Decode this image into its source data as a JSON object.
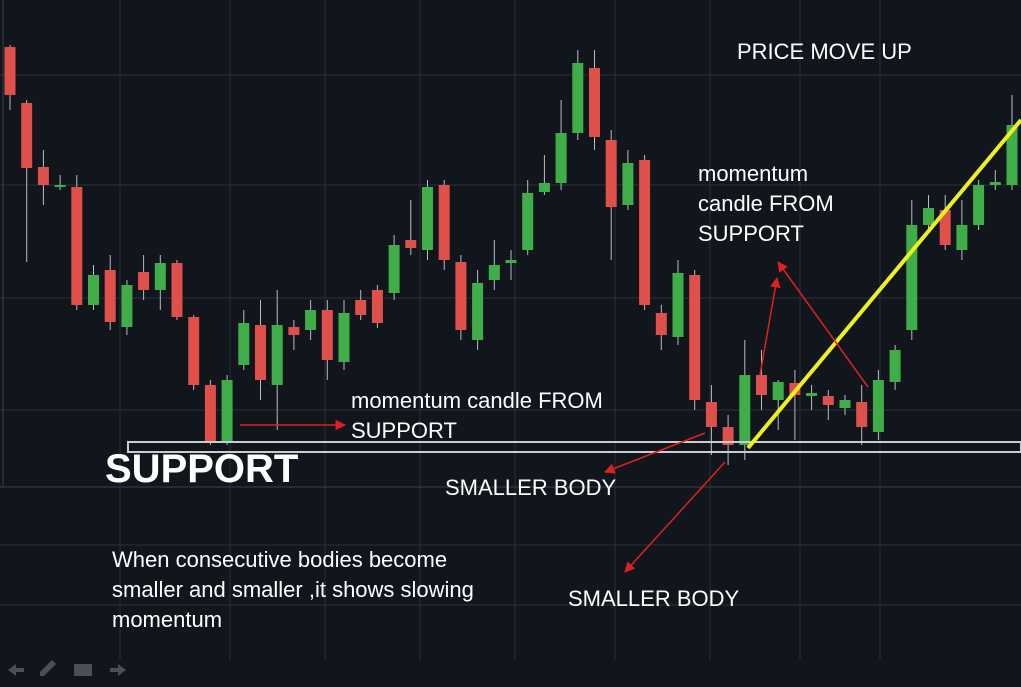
{
  "chart_data": {
    "type": "candlestick",
    "open": [
      443,
      387,
      323,
      303,
      303,
      185,
      220,
      163,
      218,
      200,
      227,
      173,
      105,
      48,
      125,
      165,
      105,
      163,
      160,
      180,
      128,
      190,
      200,
      197,
      250,
      240,
      305,
      228,
      150,
      210,
      227,
      240,
      298,
      307,
      357,
      422,
      350,
      285,
      330,
      177,
      153,
      215,
      88,
      63,
      45,
      115,
      90,
      107,
      94,
      94,
      82,
      88,
      58,
      108,
      160,
      265,
      280,
      240,
      265,
      305,
      305
    ],
    "high": [
      445,
      390,
      340,
      315,
      315,
      225,
      235,
      210,
      235,
      235,
      230,
      175,
      110,
      115,
      180,
      190,
      200,
      170,
      190,
      190,
      190,
      200,
      205,
      255,
      290,
      310,
      310,
      235,
      220,
      250,
      240,
      310,
      335,
      390,
      440,
      440,
      360,
      340,
      335,
      185,
      230,
      220,
      105,
      75,
      150,
      140,
      110,
      120,
      105,
      100,
      95,
      105,
      120,
      145,
      290,
      295,
      295,
      290,
      310,
      320,
      395
    ],
    "low": [
      380,
      228,
      285,
      300,
      180,
      180,
      160,
      155,
      190,
      180,
      170,
      100,
      45,
      45,
      120,
      90,
      60,
      140,
      150,
      110,
      120,
      170,
      162,
      190,
      235,
      230,
      220,
      150,
      140,
      200,
      210,
      235,
      295,
      300,
      350,
      340,
      230,
      280,
      180,
      140,
      145,
      80,
      35,
      25,
      30,
      80,
      60,
      50,
      80,
      70,
      75,
      45,
      50,
      100,
      150,
      260,
      240,
      230,
      260,
      300,
      300
    ],
    "close": [
      395,
      322,
      305,
      305,
      185,
      215,
      168,
      205,
      200,
      227,
      173,
      105,
      48,
      110,
      167,
      110,
      165,
      155,
      180,
      130,
      177,
      175,
      167,
      245,
      242,
      303,
      230,
      160,
      207,
      225,
      230,
      297,
      307,
      357,
      427,
      353,
      283,
      327,
      185,
      155,
      217,
      90,
      63,
      45,
      115,
      95,
      108,
      95,
      97,
      85,
      90,
      63,
      110,
      140,
      265,
      282,
      245,
      265,
      305,
      308,
      365
    ],
    "up_color": "#3fae49",
    "down_color": "#e0504a",
    "ylim": [
      0,
      490
    ],
    "annotations": {
      "price_move_up": "PRICE MOVE UP",
      "momentum_left": [
        "momentum candle FROM",
        "SUPPORT"
      ],
      "momentum_right": [
        "momentum",
        "candle FROM",
        "SUPPORT"
      ],
      "support": "SUPPORT",
      "smaller_body_1": "SMALLER BODY",
      "smaller_body_2": "SMALLER BODY",
      "note": [
        "When consecutive bodies become",
        "smaller and smaller ,it shows slowing",
        "momentum"
      ]
    }
  }
}
